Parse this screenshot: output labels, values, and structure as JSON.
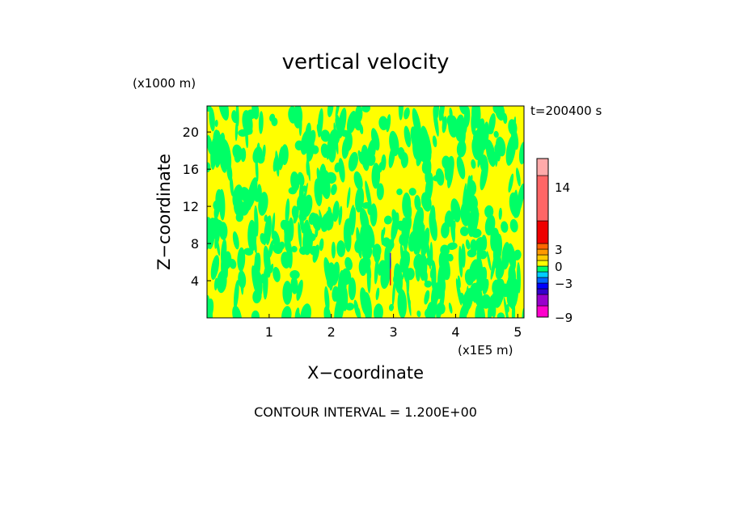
{
  "chart_data": {
    "type": "heatmap",
    "title": "vertical velocity",
    "xlabel": "X−coordinate",
    "ylabel": "Z−coordinate",
    "x_unit": "(x1E5 m)",
    "y_unit": "(x1000 m)",
    "time_label": "t=200400 s",
    "footer": "CONTOUR INTERVAL = 1.200E+00",
    "xlim": [
      0,
      5.1
    ],
    "ylim": [
      0,
      22.8
    ],
    "xticks": [
      {
        "value": 1,
        "label": "1"
      },
      {
        "value": 2,
        "label": "2"
      },
      {
        "value": 3,
        "label": "3"
      },
      {
        "value": 4,
        "label": "4"
      },
      {
        "value": 5,
        "label": "5"
      }
    ],
    "yticks": [
      {
        "value": 4,
        "label": "4"
      },
      {
        "value": 8,
        "label": "8"
      },
      {
        "value": 12,
        "label": "12"
      },
      {
        "value": 16,
        "label": "16"
      },
      {
        "value": 20,
        "label": "20"
      }
    ],
    "dominant_fields": [
      {
        "range": [
          -1.2,
          0
        ],
        "color": "#00ff66"
      },
      {
        "range": [
          0,
          1.2
        ],
        "color": "#ffff00"
      }
    ],
    "colorbar": {
      "min": -9,
      "max": 19,
      "bands": [
        {
          "from": -9,
          "to": -7,
          "color": "#ff00cc"
        },
        {
          "from": -7,
          "to": -5,
          "color": "#9900cc"
        },
        {
          "from": -5,
          "to": -4,
          "color": "#3300cc"
        },
        {
          "from": -4,
          "to": -3,
          "color": "#0000ff"
        },
        {
          "from": -3,
          "to": -2,
          "color": "#0066ff"
        },
        {
          "from": -2,
          "to": -1,
          "color": "#00ccff"
        },
        {
          "from": -1,
          "to": 0,
          "color": "#00ff66"
        },
        {
          "from": 0,
          "to": 1,
          "color": "#ffff00"
        },
        {
          "from": 1,
          "to": 2,
          "color": "#ffcc00"
        },
        {
          "from": 2,
          "to": 3,
          "color": "#ff9900"
        },
        {
          "from": 3,
          "to": 4,
          "color": "#ff6600"
        },
        {
          "from": 4,
          "to": 8,
          "color": "#ee0000"
        },
        {
          "from": 8,
          "to": 16,
          "color": "#ff6666"
        },
        {
          "from": 16,
          "to": 19,
          "color": "#ffaaaa"
        }
      ],
      "labels": [
        {
          "value": 14,
          "label": "14"
        },
        {
          "value": 3,
          "label": "3"
        },
        {
          "value": 0,
          "label": "0"
        },
        {
          "value": -3,
          "label": "−3"
        },
        {
          "value": -9,
          "label": "−9"
        }
      ]
    },
    "streak": {
      "x": 2.95,
      "z_from": 3.5,
      "z_to": 7.0,
      "upper_color": "#3333cc",
      "lower_color": "#cc2222"
    }
  }
}
